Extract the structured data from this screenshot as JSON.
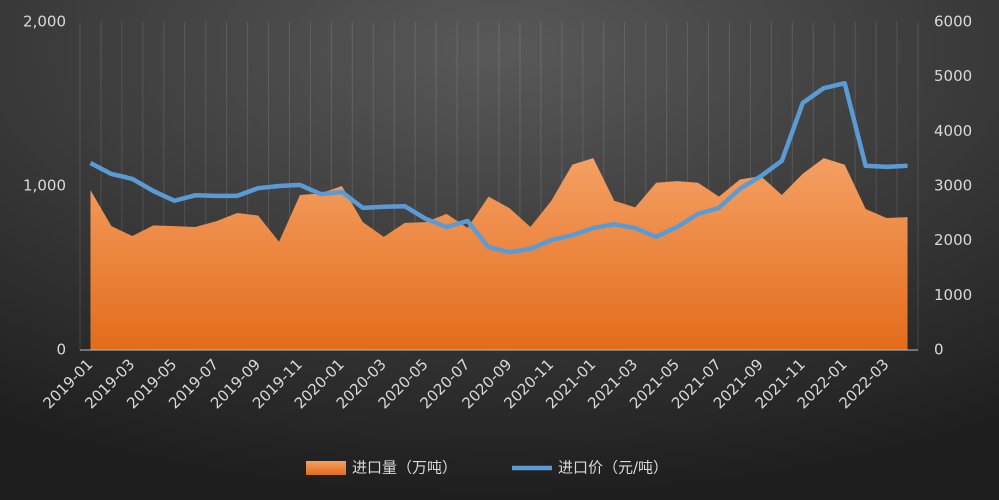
{
  "chart_data": {
    "type": "area-line",
    "categories": [
      "2019-01",
      null,
      "2019-03",
      null,
      "2019-05",
      null,
      "2019-07",
      null,
      "2019-09",
      null,
      "2019-11",
      null,
      "2020-01",
      null,
      "2020-03",
      null,
      "2020-05",
      null,
      "2020-07",
      null,
      "2020-09",
      null,
      "2020-11",
      null,
      "2021-01",
      null,
      "2021-03",
      null,
      "2021-05",
      null,
      "2021-07",
      null,
      "2021-09",
      null,
      "2021-11",
      null,
      "2022-01",
      null,
      "2022-03",
      null
    ],
    "series": [
      {
        "name": "进口量（万吨）",
        "type": "area",
        "axis": "y",
        "color": "#ed7d31",
        "values": [
          975,
          755,
          695,
          760,
          755,
          750,
          785,
          835,
          820,
          660,
          945,
          955,
          1000,
          780,
          690,
          775,
          780,
          830,
          745,
          935,
          865,
          750,
          910,
          1130,
          1170,
          910,
          870,
          1020,
          1030,
          1020,
          935,
          1040,
          1060,
          945,
          1075,
          1170,
          1130,
          860,
          805,
          810
        ]
      },
      {
        "name": "进口价（元/吨）",
        "type": "line",
        "axis": "y2",
        "color": "#5b9bd5",
        "values": [
          3420,
          3220,
          3130,
          2910,
          2730,
          2830,
          2820,
          2820,
          2960,
          3000,
          3020,
          2850,
          2890,
          2600,
          2620,
          2630,
          2400,
          2250,
          2360,
          1880,
          1790,
          1850,
          2010,
          2100,
          2230,
          2300,
          2230,
          2070,
          2250,
          2490,
          2600,
          2950,
          3180,
          3460,
          4520,
          4790,
          4880,
          3370,
          3350,
          3370
        ]
      }
    ],
    "ylim": [
      0,
      2000
    ],
    "yticks": [
      0,
      {
        "value": 1000,
        "label": "1,000"
      },
      {
        "value": 2000,
        "label": "2,000"
      }
    ],
    "y2lim": [
      0,
      6000
    ],
    "y2ticks": [
      0,
      1000,
      2000,
      3000,
      4000,
      5000,
      6000
    ],
    "legend": "bottom"
  }
}
